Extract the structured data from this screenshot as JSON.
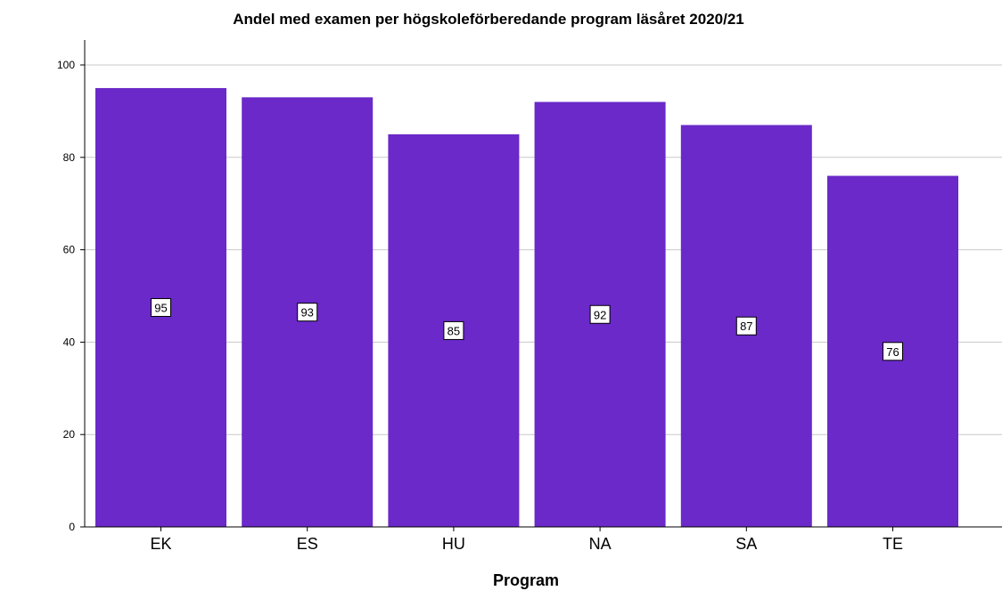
{
  "chart_data": {
    "type": "bar",
    "title": "Andel med examen per högskoleförberedande program läsåret 2020/21",
    "xlabel": "Program",
    "ylabel": "",
    "categories": [
      "EK",
      "ES",
      "HU",
      "NA",
      "SA",
      "TE"
    ],
    "values": [
      95,
      93,
      85,
      92,
      87,
      76
    ],
    "data_labels": [
      "95",
      "93",
      "85",
      "92",
      "87",
      "76"
    ],
    "ylim": [
      0,
      100
    ],
    "yticks": [
      0,
      20,
      40,
      60,
      80,
      100
    ],
    "grid": true,
    "legend": "none",
    "colors": {
      "bar": "#6a29c8",
      "grid": "#c8c8c8",
      "axis": "#000000"
    }
  }
}
